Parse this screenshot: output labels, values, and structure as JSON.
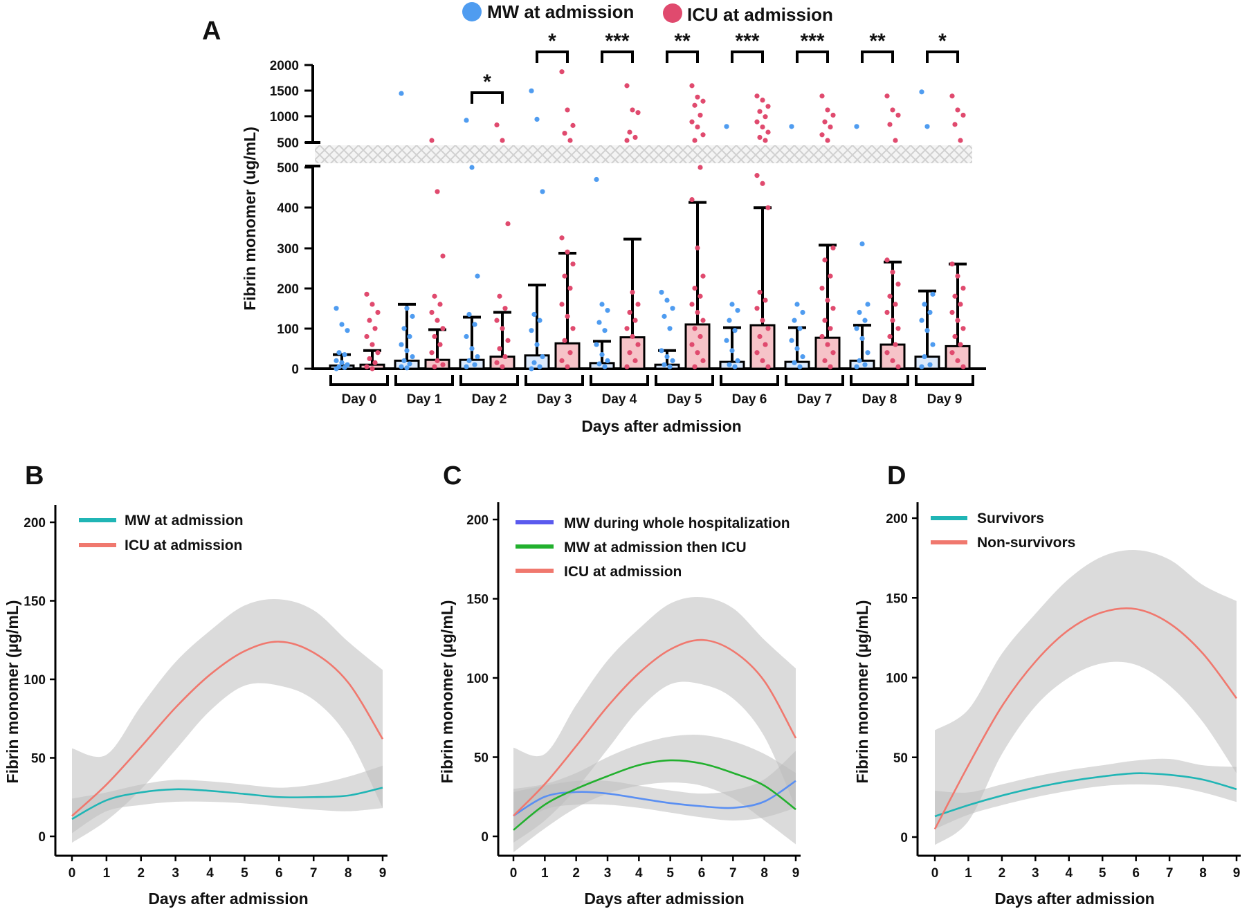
{
  "colors": {
    "mw": "#4f9cf0",
    "icu": "#e04a6e",
    "icu_bar_fill": "#f6c3c8",
    "teal": "#20b5b5",
    "salmon": "#f0786e",
    "blue_line": "#5a8ff2",
    "purple_legend": "#5a5aee",
    "green": "#22b02e",
    "ci": "#bdbdbd"
  },
  "chart_data": [
    {
      "panel": "A",
      "type": "bar",
      "legend": [
        "MW at admission",
        "ICU at admission"
      ],
      "categories": [
        "Day 0",
        "Day 1",
        "Day 2",
        "Day 3",
        "Day 4",
        "Day 5",
        "Day 6",
        "Day 7",
        "Day 8",
        "Day 9"
      ],
      "xlabel": "Days after admission",
      "ylabel": "Fibrin monomer (ug/mL)",
      "ylim_lower": [
        0,
        500
      ],
      "ylim_upper": [
        500,
        2000
      ],
      "yticks_lower": [
        "0",
        "100",
        "200",
        "300",
        "400",
        "500"
      ],
      "yticks_upper": [
        "500",
        "1000",
        "1500",
        "2000"
      ],
      "series": [
        {
          "name": "MW at admission",
          "values": [
            8,
            20,
            22,
            33,
            14,
            10,
            17,
            17,
            20,
            30
          ],
          "error_upper": [
            35,
            160,
            128,
            208,
            68,
            45,
            102,
            102,
            108,
            193
          ],
          "points": [
            [
              150,
              110,
              95,
              40,
              35,
              20,
              15,
              10,
              5,
              3,
              0
            ],
            [
              1450,
              150,
              130,
              100,
              80,
              60,
              45,
              30,
              20,
              12,
              5,
              2
            ],
            [
              930,
              500,
              230,
              135,
              110,
              80,
              50,
              30,
              20,
              10,
              5
            ],
            [
              1500,
              950,
              440,
              135,
              120,
              95,
              60,
              30,
              15,
              5,
              0
            ],
            [
              470,
              160,
              145,
              115,
              95,
              60,
              35,
              20,
              12,
              5
            ],
            [
              190,
              170,
              150,
              130,
              100,
              45,
              30,
              20,
              10,
              5
            ],
            [
              810,
              160,
              145,
              120,
              95,
              70,
              45,
              20,
              10,
              5
            ],
            [
              810,
              160,
              140,
              120,
              100,
              70,
              50,
              30,
              15,
              5
            ],
            [
              810,
              310,
              160,
              140,
              120,
              100,
              75,
              40,
              20,
              10,
              5
            ],
            [
              1480,
              810,
              185,
              160,
              140,
              120,
              95,
              60,
              30,
              10,
              5
            ]
          ]
        },
        {
          "name": "ICU at admission",
          "values": [
            10,
            22,
            30,
            63,
            78,
            110,
            108,
            77,
            60,
            56
          ],
          "error_upper": [
            45,
            97,
            140,
            287,
            322,
            413,
            400,
            307,
            265,
            260
          ],
          "points": [
            [
              185,
              160,
              140,
              120,
              100,
              80,
              60,
              40,
              25,
              15,
              5,
              0
            ],
            [
              540,
              440,
              280,
              180,
              160,
              140,
              120,
              100,
              80,
              60,
              40,
              20,
              10,
              5
            ],
            [
              840,
              540,
              360,
              180,
              150,
              120,
              100,
              70,
              50,
              30,
              15,
              5
            ],
            [
              1870,
              1130,
              830,
              680,
              540,
              325,
              290,
              260,
              230,
              200,
              160,
              130,
              100,
              70,
              40,
              20,
              5
            ],
            [
              1600,
              1130,
              1080,
              700,
              600,
              540,
              190,
              160,
              140,
              120,
              100,
              80,
              60,
              40,
              20,
              5
            ],
            [
              1600,
              1380,
              1300,
              1220,
              1030,
              900,
              800,
              650,
              540,
              500,
              420,
              300,
              230,
              200,
              180,
              160,
              140,
              120,
              100,
              80,
              60,
              40,
              20,
              5
            ],
            [
              1400,
              1320,
              1200,
              1100,
              1000,
              900,
              800,
              700,
              600,
              540,
              480,
              460,
              400,
              190,
              170,
              150,
              120,
              100,
              80,
              60,
              40,
              20,
              5
            ],
            [
              1400,
              1130,
              1030,
              900,
              800,
              650,
              540,
              300,
              270,
              230,
              200,
              170,
              150,
              120,
              100,
              80,
              60,
              40,
              20,
              5
            ],
            [
              1400,
              1130,
              1030,
              850,
              540,
              270,
              240,
              210,
              180,
              160,
              140,
              120,
              100,
              80,
              60,
              40,
              20,
              5
            ],
            [
              1400,
              1130,
              1030,
              850,
              540,
              260,
              230,
              200,
              180,
              160,
              140,
              120,
              100,
              80,
              60,
              40,
              20,
              5
            ]
          ]
        }
      ],
      "significance": [
        {
          "day": "Day 2",
          "label": "*"
        },
        {
          "day": "Day 3",
          "label": "*"
        },
        {
          "day": "Day 4",
          "label": "***"
        },
        {
          "day": "Day 5",
          "label": "**"
        },
        {
          "day": "Day 6",
          "label": "***"
        },
        {
          "day": "Day 7",
          "label": "***"
        },
        {
          "day": "Day 8",
          "label": "**"
        },
        {
          "day": "Day 9",
          "label": "*"
        }
      ]
    },
    {
      "panel": "B",
      "type": "line",
      "xlabel": "Days after admission",
      "ylabel": "Fibrin monomer (µg/mL)",
      "xlim": [
        0,
        9
      ],
      "ylim": [
        0,
        200
      ],
      "xticks": [
        "0",
        "1",
        "2",
        "3",
        "4",
        "5",
        "6",
        "7",
        "8",
        "9"
      ],
      "yticks": [
        "0",
        "50",
        "100",
        "150",
        "200"
      ],
      "x": [
        0,
        1,
        2,
        3,
        4,
        5,
        6,
        7,
        8,
        9
      ],
      "series": [
        {
          "name": "MW at admission",
          "color": "#20b5b5",
          "values": [
            11,
            23,
            28,
            30,
            29,
            27,
            25,
            25,
            26,
            31
          ],
          "ci_low": [
            2,
            16,
            20,
            22,
            22,
            21,
            19,
            17,
            16,
            18
          ],
          "ci_high": [
            24,
            28,
            33,
            36,
            35,
            33,
            31,
            33,
            38,
            45
          ]
        },
        {
          "name": "ICU at admission",
          "color": "#f0786e",
          "values": [
            13,
            33,
            57,
            82,
            103,
            118,
            124,
            117,
            98,
            62
          ],
          "ci_low": [
            -4,
            10,
            30,
            55,
            80,
            96,
            96,
            87,
            63,
            18
          ],
          "ci_high": [
            56,
            52,
            83,
            111,
            131,
            147,
            151,
            144,
            124,
            106
          ]
        }
      ]
    },
    {
      "panel": "C",
      "type": "line",
      "xlabel": "Days after admission",
      "ylabel": "Fibrin monomer (µg/mL)",
      "xlim": [
        0,
        9
      ],
      "ylim": [
        0,
        200
      ],
      "xticks": [
        "0",
        "1",
        "2",
        "3",
        "4",
        "5",
        "6",
        "7",
        "8",
        "9"
      ],
      "yticks": [
        "0",
        "50",
        "100",
        "150",
        "200"
      ],
      "x": [
        0,
        1,
        2,
        3,
        4,
        5,
        6,
        7,
        8,
        9
      ],
      "series": [
        {
          "name": "MW during whole hospitalization",
          "color": "#5a8ff2",
          "legend_color": "#5a5aee",
          "values": [
            13,
            25,
            28,
            27,
            24,
            21,
            19,
            18,
            22,
            35
          ],
          "ci_low": [
            5,
            17,
            20,
            20,
            18,
            15,
            12,
            10,
            12,
            18
          ],
          "ci_high": [
            28,
            32,
            35,
            35,
            32,
            29,
            27,
            29,
            36,
            54
          ]
        },
        {
          "name": "MW at admission then ICU",
          "color": "#22b02e",
          "values": [
            4,
            20,
            30,
            38,
            45,
            48,
            46,
            40,
            32,
            17
          ],
          "ci_low": [
            -10,
            5,
            18,
            27,
            32,
            34,
            32,
            24,
            10,
            -5
          ],
          "ci_high": [
            30,
            33,
            40,
            50,
            58,
            63,
            64,
            60,
            52,
            40
          ]
        },
        {
          "name": "ICU at admission",
          "color": "#f0786e",
          "values": [
            13,
            33,
            57,
            82,
            103,
            118,
            124,
            117,
            98,
            62
          ],
          "ci_low": [
            -4,
            10,
            30,
            55,
            80,
            96,
            96,
            87,
            63,
            18
          ],
          "ci_high": [
            56,
            52,
            83,
            111,
            131,
            147,
            151,
            144,
            124,
            106
          ]
        }
      ]
    },
    {
      "panel": "D",
      "type": "line",
      "xlabel": "Days after admission",
      "ylabel": "Fibrin monomer (µg/mL)",
      "xlim": [
        0,
        9
      ],
      "ylim": [
        0,
        200
      ],
      "xticks": [
        "0",
        "1",
        "2",
        "3",
        "4",
        "5",
        "6",
        "7",
        "8",
        "9"
      ],
      "yticks": [
        "0",
        "50",
        "100",
        "150",
        "200"
      ],
      "x": [
        0,
        1,
        2,
        3,
        4,
        5,
        6,
        7,
        8,
        9
      ],
      "series": [
        {
          "name": "Survivors",
          "color": "#20b5b5",
          "values": [
            13,
            20,
            26,
            31,
            35,
            38,
            40,
            39,
            36,
            30
          ],
          "ci_low": [
            5,
            14,
            20,
            25,
            29,
            32,
            33,
            32,
            28,
            22
          ],
          "ci_high": [
            29,
            28,
            33,
            38,
            42,
            45,
            48,
            49,
            45,
            44
          ]
        },
        {
          "name": "Non-survivors",
          "color": "#f0786e",
          "values": [
            5,
            45,
            82,
            110,
            130,
            141,
            143,
            134,
            115,
            87
          ],
          "ci_low": [
            -5,
            10,
            52,
            82,
            100,
            109,
            108,
            95,
            72,
            40
          ],
          "ci_high": [
            67,
            80,
            115,
            140,
            162,
            176,
            180,
            174,
            158,
            148
          ]
        }
      ]
    }
  ]
}
